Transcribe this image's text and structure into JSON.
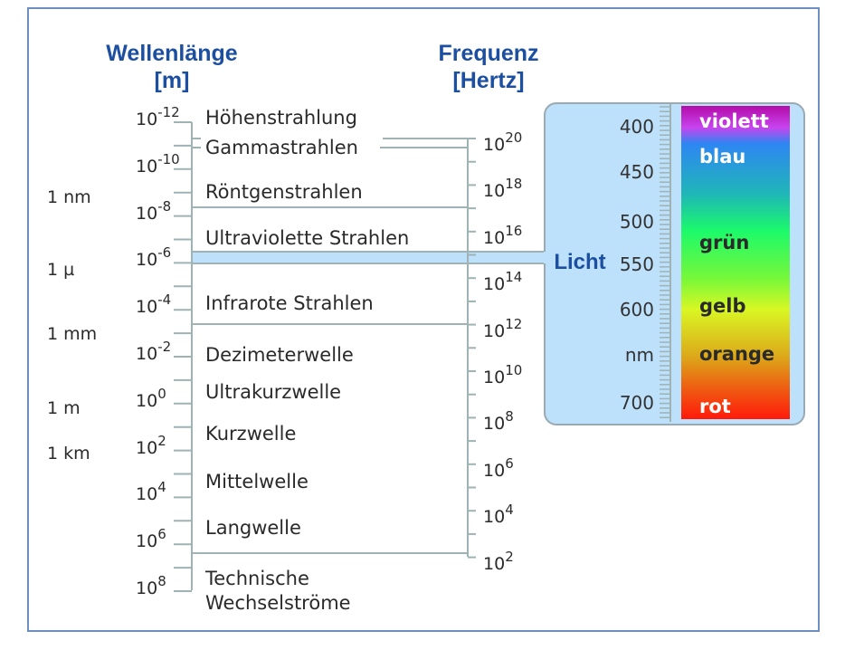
{
  "headers": {
    "wavelength": "Wellenlänge",
    "wavelength_unit": "[m]",
    "frequency": "Frequenz",
    "frequency_unit": "[Hertz]"
  },
  "units": [
    "1 nm",
    "1 µ",
    "1 mm",
    "1 m",
    "1 km"
  ],
  "wavelength_exponents": [
    "-12",
    "-10",
    "-8",
    "-6",
    "-4",
    "-2",
    "0",
    "2",
    "4",
    "6",
    "8"
  ],
  "frequency_exponents": [
    "20",
    "18",
    "16",
    "14",
    "12",
    "10",
    "8",
    "6",
    "4",
    "2"
  ],
  "base": "10",
  "bands": [
    "Höhenstrahlung",
    "Gammastrahlen",
    "Röntgenstrahlen",
    "Ultraviolette Strahlen",
    "Infrarote Strahlen",
    "Dezimeterwelle",
    "Ultrakurzwelle",
    "Kurzwelle",
    "Mittelwelle",
    "Langwelle",
    "Technische",
    "Wechselströme"
  ],
  "light": {
    "label": "Licht",
    "scale": [
      "400",
      "450",
      "500",
      "550",
      "600",
      "nm",
      "700"
    ],
    "colors": [
      {
        "name": "violett",
        "text": "#ffffff"
      },
      {
        "name": "blau",
        "text": "#ffffff"
      },
      {
        "name": "grün",
        "text": "#2a2a2a"
      },
      {
        "name": "gelb",
        "text": "#2a2a2a"
      },
      {
        "name": "orange",
        "text": "#2a2a2a"
      },
      {
        "name": "rot",
        "text": "#ffffff"
      }
    ]
  },
  "colors": {
    "header": "#1c4fa0",
    "panel": "#bde0fb",
    "lines": "#9fb2b4"
  }
}
